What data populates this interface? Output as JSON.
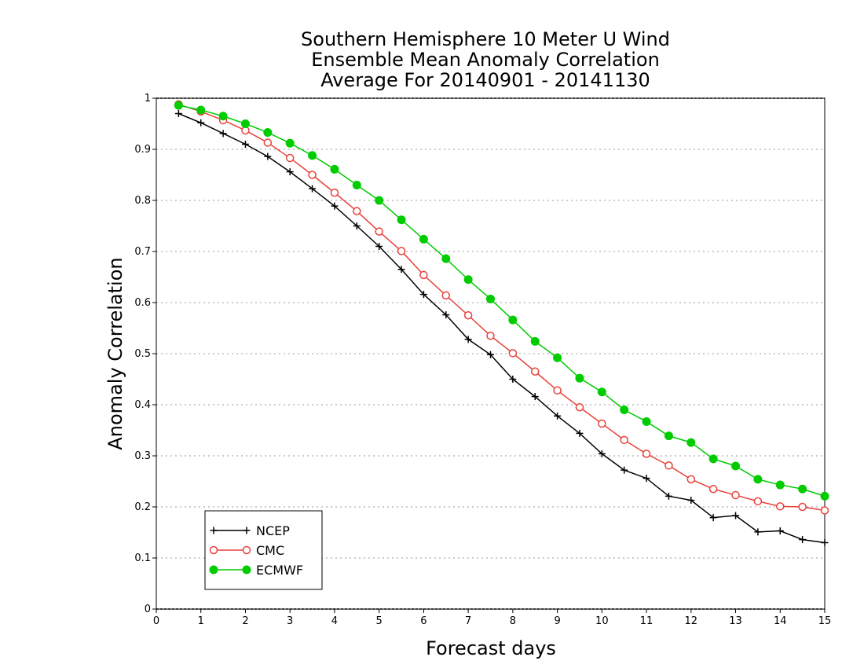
{
  "chart_data": {
    "type": "line",
    "title_lines": [
      "Southern Hemisphere 10 Meter U Wind",
      "Ensemble Mean Anomaly Correlation",
      "Average For 20140901 - 20141130"
    ],
    "xlabel": "Forecast days",
    "ylabel": "Anomaly Correlation",
    "xlim": [
      0,
      15
    ],
    "ylim": [
      0,
      1
    ],
    "xticks": [
      "0",
      "1",
      "2",
      "3",
      "4",
      "5",
      "6",
      "7",
      "8",
      "9",
      "10",
      "11",
      "12",
      "13",
      "14",
      "15"
    ],
    "yticks": [
      "0",
      "0.1",
      "0.2",
      "0.3",
      "0.4",
      "0.5",
      "0.6",
      "0.7",
      "0.8",
      "0.9",
      "1"
    ],
    "grid": "horizontal dotted",
    "legend_position": "bottom-left",
    "x": [
      0.5,
      1,
      1.5,
      2,
      2.5,
      3,
      3.5,
      4,
      4.5,
      5,
      5.5,
      6,
      6.5,
      7,
      7.5,
      8,
      8.5,
      9,
      9.5,
      10,
      10.5,
      11,
      11.5,
      12,
      12.5,
      13,
      13.5,
      14,
      14.5,
      15
    ],
    "series": [
      {
        "name": "NCEP",
        "color": "#000000",
        "marker": "plus",
        "values": [
          0.97,
          0.952,
          0.931,
          0.91,
          0.886,
          0.856,
          0.823,
          0.789,
          0.75,
          0.71,
          0.665,
          0.616,
          0.576,
          0.528,
          0.498,
          0.45,
          0.416,
          0.378,
          0.344,
          0.304,
          0.272,
          0.256,
          0.221,
          0.213,
          0.179,
          0.183,
          0.151,
          0.153,
          0.136,
          0.13
        ]
      },
      {
        "name": "CMC",
        "color": "#e8403a",
        "marker": "open-circle",
        "values": [
          0.988,
          0.974,
          0.957,
          0.937,
          0.913,
          0.883,
          0.85,
          0.815,
          0.779,
          0.739,
          0.701,
          0.654,
          0.614,
          0.575,
          0.535,
          0.501,
          0.465,
          0.428,
          0.395,
          0.363,
          0.331,
          0.304,
          0.281,
          0.254,
          0.235,
          0.223,
          0.211,
          0.201,
          0.2,
          0.193
        ]
      },
      {
        "name": "ECMWF",
        "color": "#00cc00",
        "marker": "filled-circle",
        "values": [
          0.986,
          0.977,
          0.965,
          0.95,
          0.933,
          0.912,
          0.888,
          0.861,
          0.83,
          0.8,
          0.762,
          0.724,
          0.686,
          0.645,
          0.607,
          0.566,
          0.524,
          0.492,
          0.452,
          0.425,
          0.39,
          0.367,
          0.339,
          0.326,
          0.294,
          0.28,
          0.254,
          0.243,
          0.235,
          0.221
        ]
      }
    ]
  }
}
